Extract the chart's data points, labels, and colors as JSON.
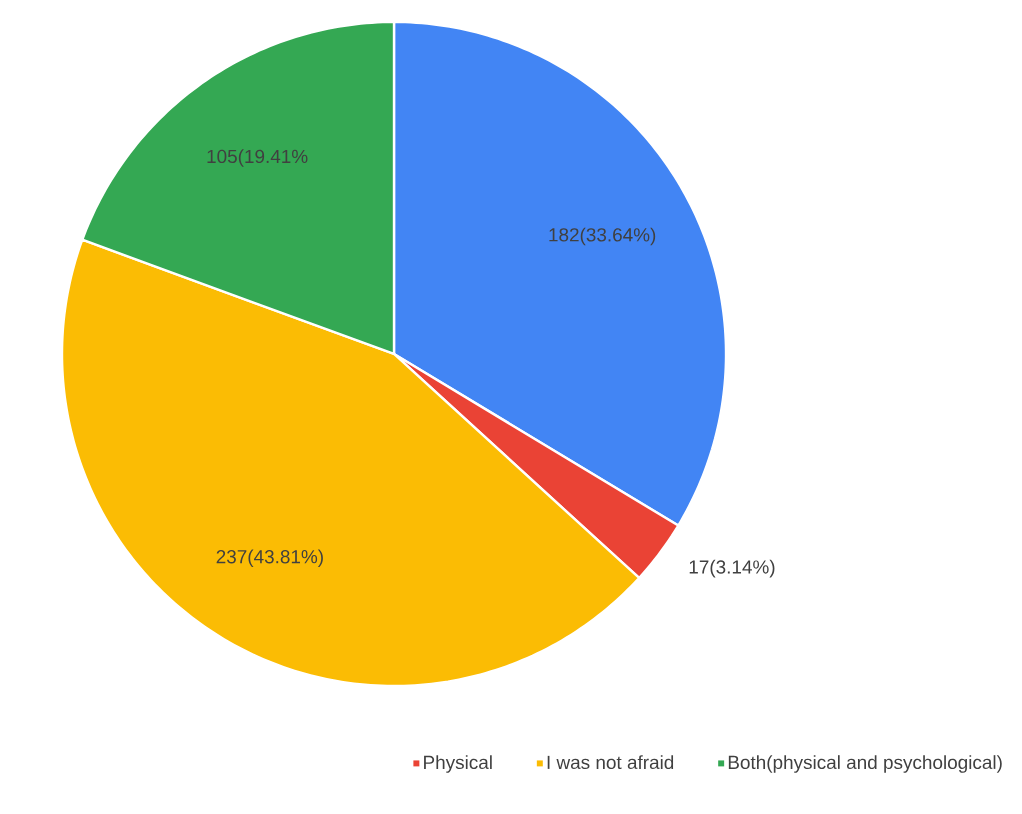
{
  "chart_data": {
    "type": "pie",
    "categories": [
      null,
      "Physical",
      "I was not afraid",
      "Both(physical and psychological)"
    ],
    "values": [
      182,
      17,
      237,
      105
    ],
    "colors": [
      "#4285f4",
      "#ea4335",
      "#fbbc04",
      "#34a853"
    ],
    "value_labels": [
      "182(33.64%)",
      "17(3.14%)",
      "237(43.81%)",
      "105(19.41%"
    ],
    "legend": "bottom"
  }
}
